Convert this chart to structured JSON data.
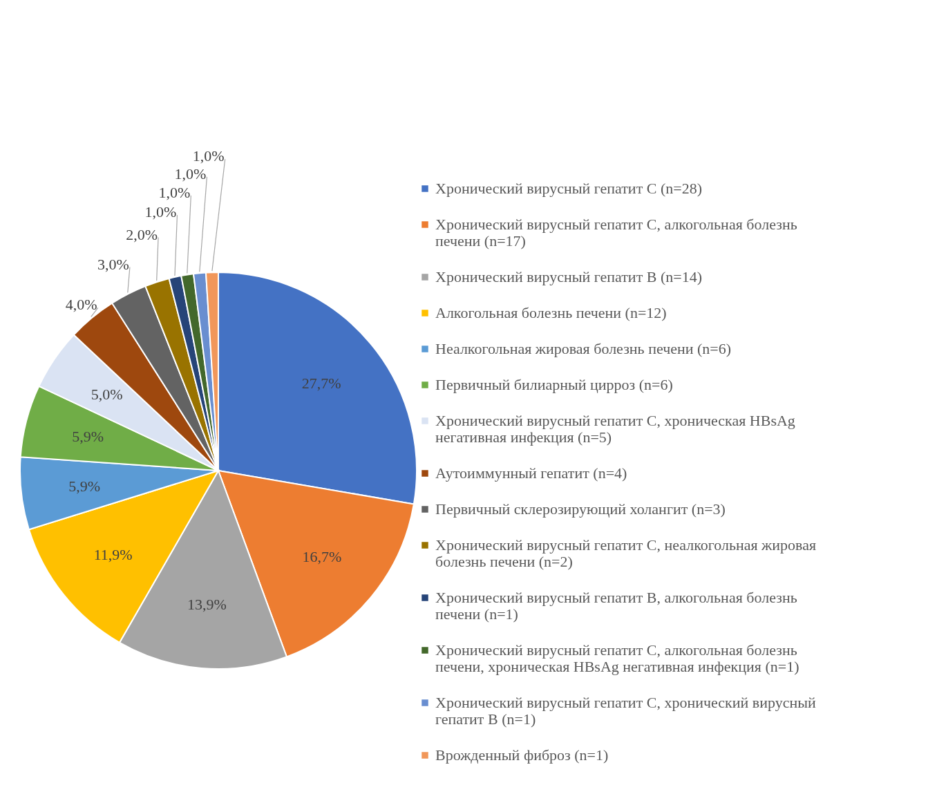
{
  "chart_data": {
    "type": "pie",
    "categories": [
      "Хронический вирусный гепатит С (n=28)",
      "Хронический вирусный гепатит С, алкогольная болезнь печени (n=17)",
      "Хронический вирусный гепатит В (n=14)",
      "Алкогольная болезнь печени (n=12)",
      "Неалкогольная жировая болезнь печени (n=6)",
      "Первичный билиарный цирроз (n=6)",
      "Хронический вирусный гепатит С,  хроническая HBsAg негативная инфекция (n=5)",
      "Аутоиммунный гепатит (n=4)",
      "Первичный склерозирующий  холангит (n=3)",
      "Хронический вирусный гепатит С, неалкогольная жировая болезнь печени (n=2)",
      "Хронический вирусный гепатит В, алкогольная болезнь печени (n=1)",
      "Хронический вирусный гепатит С, алкогольная болезнь печени, хроническая HBsAg негативная инфекция (n=1)",
      "Хронический вирусный гепатит С, хронический вирусный гепатит В (n=1)",
      "Врожденный фиброз (n=1)"
    ],
    "values": [
      27.7,
      16.7,
      13.9,
      11.9,
      5.9,
      5.9,
      5.0,
      4.0,
      3.0,
      2.0,
      1.0,
      1.0,
      1.0,
      1.0
    ],
    "value_labels": [
      "27,7%",
      "16,7%",
      "13,9%",
      "11,9%",
      "5,9%",
      "5,9%",
      "5,0%",
      "4,0%",
      "3,0%",
      "2,0%",
      "1,0%",
      "1,0%",
      "1,0%",
      "1,0%"
    ],
    "colors": [
      "#4472c4",
      "#ed7d31",
      "#a5a5a5",
      "#ffc000",
      "#5b9bd5",
      "#70ad47",
      "#dae3f3",
      "#9e480e",
      "#636363",
      "#997300",
      "#264478",
      "#43682b",
      "#698ed0",
      "#f1975a"
    ],
    "legend": "right"
  }
}
